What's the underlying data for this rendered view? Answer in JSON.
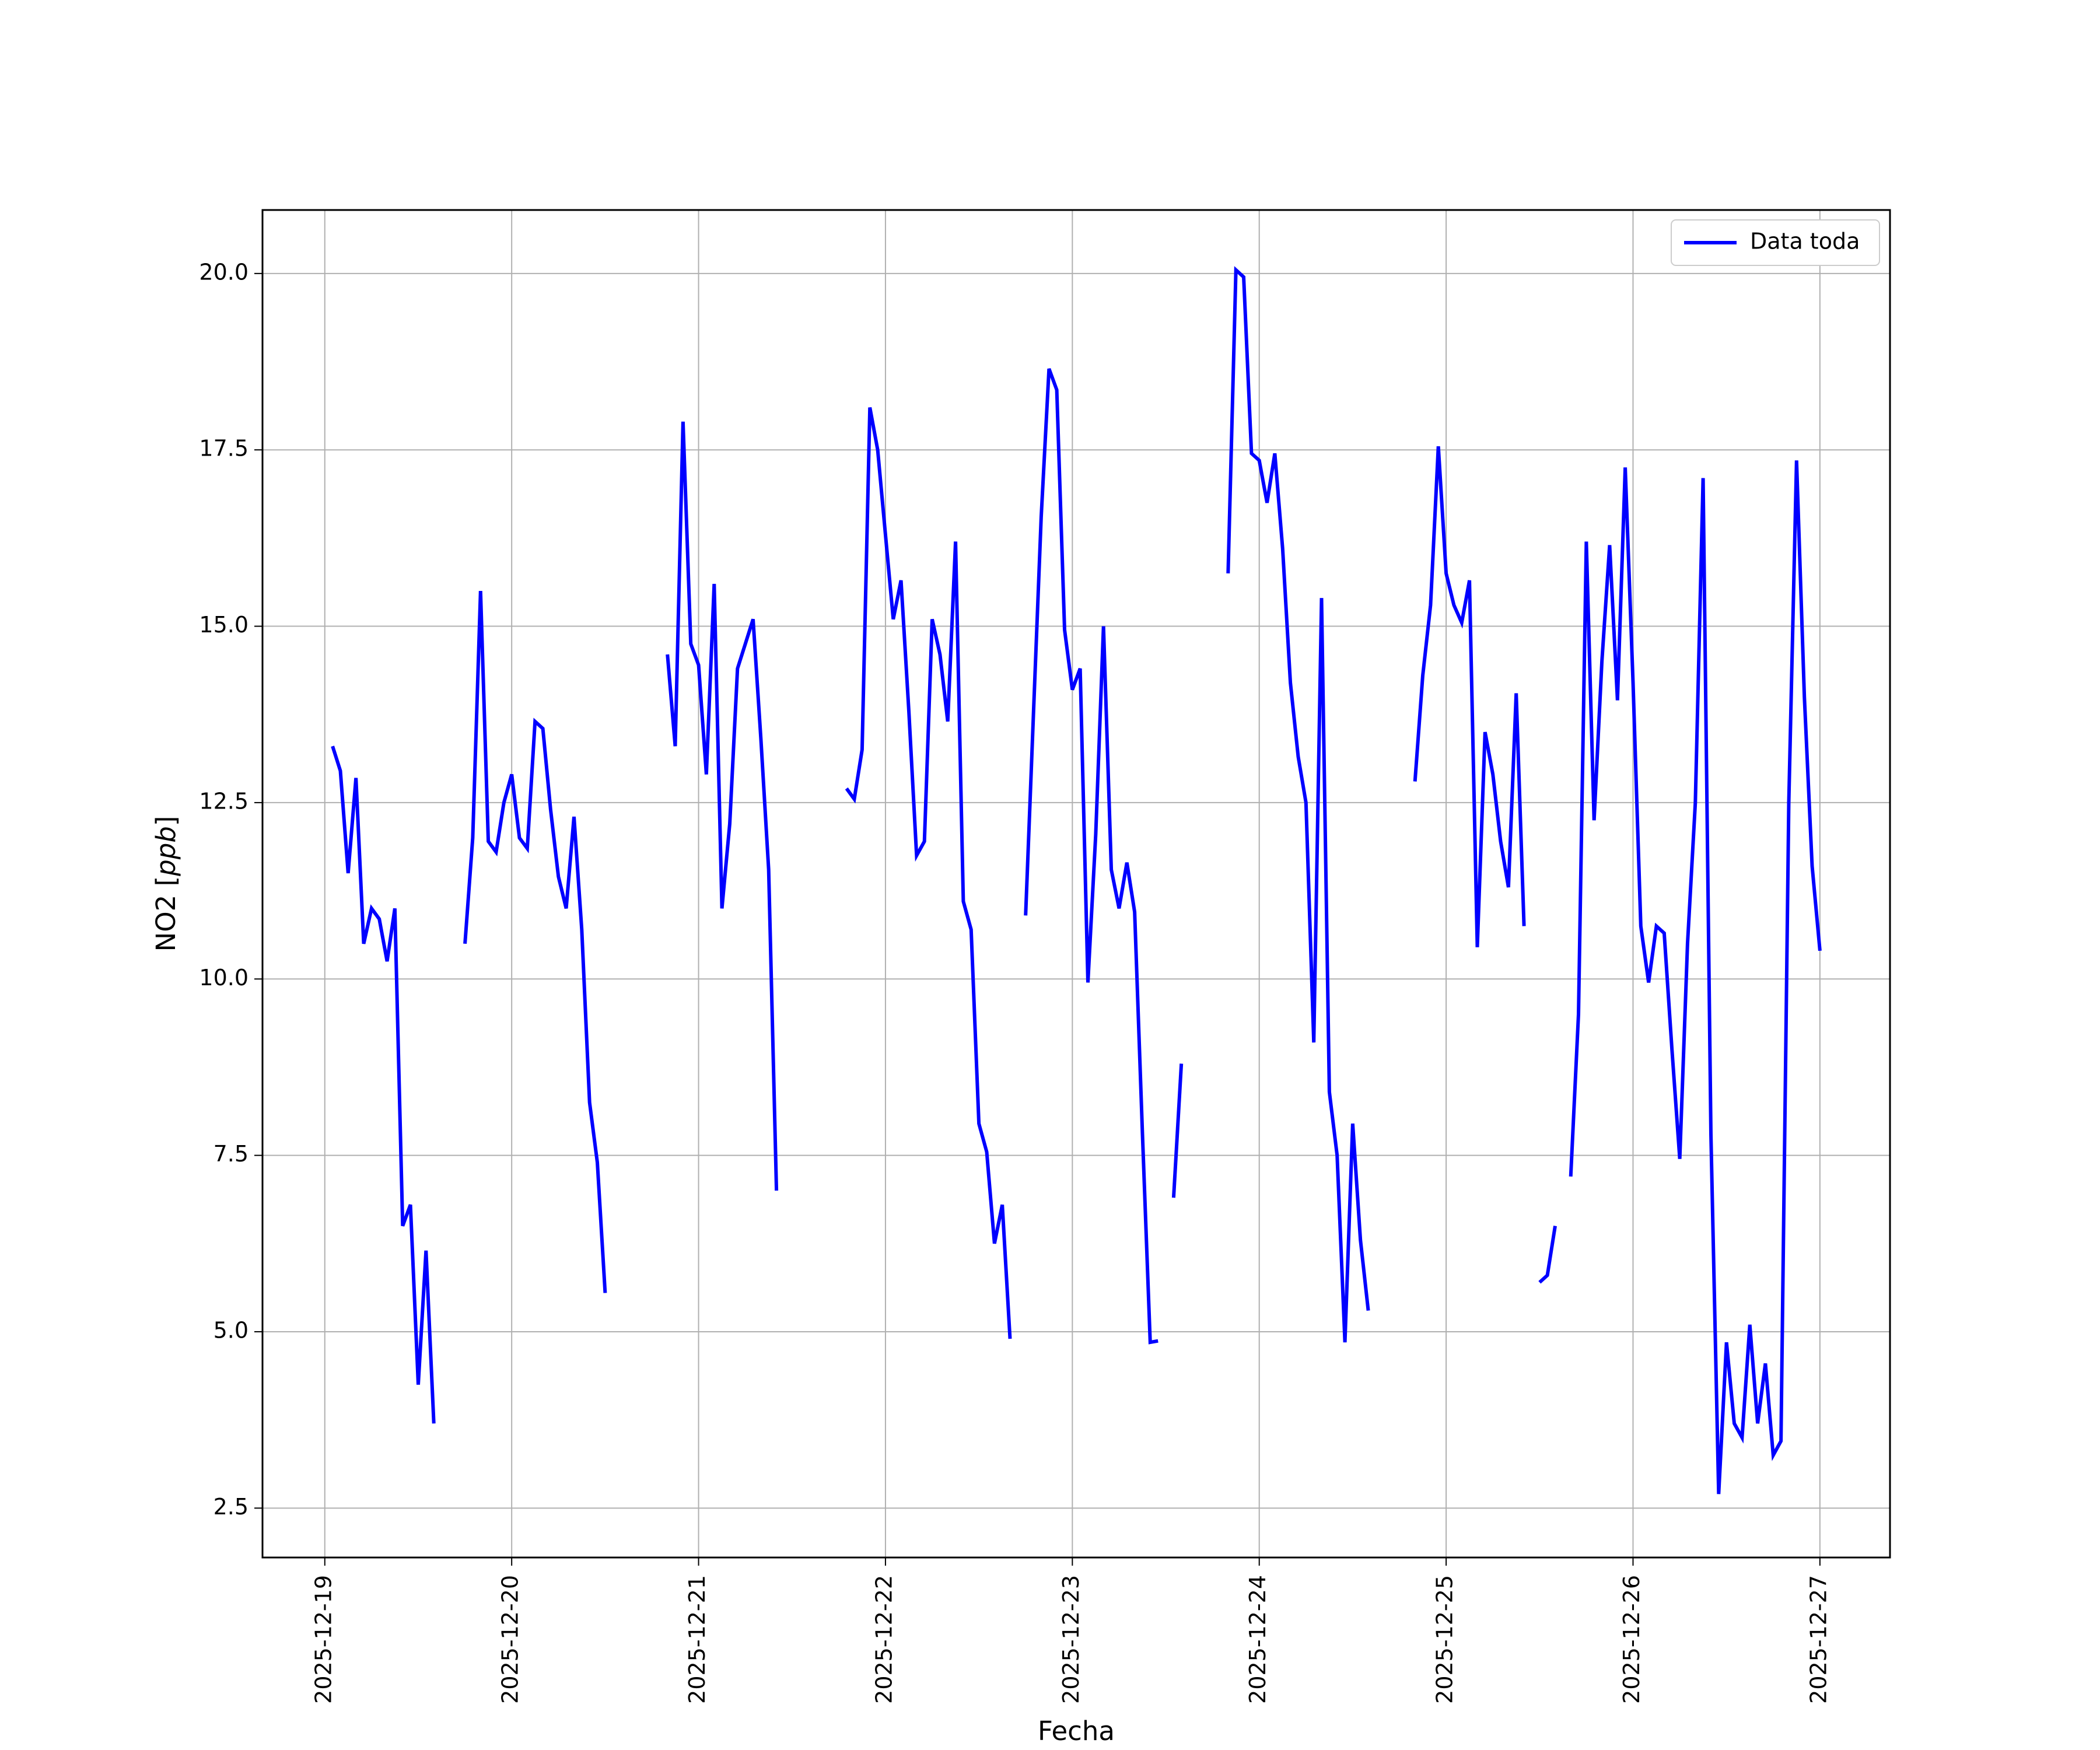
{
  "chart_data": {
    "type": "line",
    "xlabel": "Fecha",
    "ylabel_prefix": "NO2 [",
    "ylabel_unit": "ppb",
    "ylabel_suffix": "]",
    "xlim": [
      "2025-12-18 16:00",
      "2025-12-27 09:00"
    ],
    "ylim": [
      1.8,
      20.9
    ],
    "x_ticks": [
      "2025-12-19",
      "2025-12-20",
      "2025-12-21",
      "2025-12-22",
      "2025-12-23",
      "2025-12-24",
      "2025-12-25",
      "2025-12-26",
      "2025-12-27"
    ],
    "y_ticks": [
      2.5,
      5.0,
      7.5,
      10.0,
      12.5,
      15.0,
      17.5,
      20.0
    ],
    "y_tick_labels": [
      "2.5",
      "5.0",
      "7.5",
      "10.0",
      "12.5",
      "15.0",
      "17.5",
      "20.0"
    ],
    "grid": true,
    "legend_position": "top-right",
    "series": [
      {
        "name": "Data toda",
        "color": "#0000ff",
        "segments": [
          [
            [
              "2025-12-19 01:00",
              13.3
            ],
            [
              "2025-12-19 02:00",
              12.95
            ],
            [
              "2025-12-19 03:00",
              11.5
            ],
            [
              "2025-12-19 04:00",
              12.85
            ],
            [
              "2025-12-19 05:00",
              10.5
            ],
            [
              "2025-12-19 06:00",
              11.0
            ],
            [
              "2025-12-19 07:00",
              10.85
            ],
            [
              "2025-12-19 08:00",
              10.25
            ],
            [
              "2025-12-19 09:00",
              11.0
            ],
            [
              "2025-12-19 10:00",
              6.5
            ],
            [
              "2025-12-19 11:00",
              6.8
            ],
            [
              "2025-12-19 12:00",
              4.25
            ],
            [
              "2025-12-19 13:00",
              6.15
            ],
            [
              "2025-12-19 14:00",
              3.7
            ]
          ],
          [
            [
              "2025-12-19 18:00",
              10.5
            ],
            [
              "2025-12-19 19:00",
              12.0
            ],
            [
              "2025-12-19 20:00",
              15.5
            ],
            [
              "2025-12-19 21:00",
              11.95
            ],
            [
              "2025-12-19 22:00",
              11.8
            ],
            [
              "2025-12-19 23:00",
              12.5
            ],
            [
              "2025-12-20 00:00",
              12.9
            ],
            [
              "2025-12-20 01:00",
              12.0
            ],
            [
              "2025-12-20 02:00",
              11.85
            ],
            [
              "2025-12-20 03:00",
              13.65
            ],
            [
              "2025-12-20 04:00",
              13.55
            ],
            [
              "2025-12-20 05:00",
              12.4
            ],
            [
              "2025-12-20 06:00",
              11.45
            ],
            [
              "2025-12-20 07:00",
              11.0
            ],
            [
              "2025-12-20 08:00",
              12.3
            ],
            [
              "2025-12-20 09:00",
              10.7
            ],
            [
              "2025-12-20 10:00",
              8.25
            ],
            [
              "2025-12-20 11:00",
              7.4
            ],
            [
              "2025-12-20 12:00",
              5.55
            ]
          ],
          [
            [
              "2025-12-20 20:00",
              14.6
            ],
            [
              "2025-12-20 21:00",
              13.3
            ],
            [
              "2025-12-20 22:00",
              17.9
            ],
            [
              "2025-12-20 23:00",
              14.75
            ],
            [
              "2025-12-21 00:00",
              14.45
            ],
            [
              "2025-12-21 01:00",
              12.9
            ],
            [
              "2025-12-21 02:00",
              15.6
            ],
            [
              "2025-12-21 03:00",
              11.0
            ],
            [
              "2025-12-21 04:00",
              12.2
            ],
            [
              "2025-12-21 05:00",
              14.4
            ],
            [
              "2025-12-21 06:00",
              14.75
            ],
            [
              "2025-12-21 07:00",
              15.1
            ],
            [
              "2025-12-21 08:00",
              13.4
            ],
            [
              "2025-12-21 09:00",
              11.55
            ],
            [
              "2025-12-21 10:00",
              7.0
            ]
          ],
          [
            [
              "2025-12-21 19:00",
              12.7
            ],
            [
              "2025-12-21 20:00",
              12.55
            ],
            [
              "2025-12-21 21:00",
              13.25
            ],
            [
              "2025-12-21 22:00",
              18.1
            ],
            [
              "2025-12-21 23:00",
              17.5
            ],
            [
              "2025-12-22 00:00",
              16.3
            ],
            [
              "2025-12-22 01:00",
              15.1
            ],
            [
              "2025-12-22 02:00",
              15.65
            ],
            [
              "2025-12-22 03:00",
              13.8
            ],
            [
              "2025-12-22 04:00",
              11.75
            ],
            [
              "2025-12-22 05:00",
              11.95
            ],
            [
              "2025-12-22 06:00",
              15.1
            ],
            [
              "2025-12-22 07:00",
              14.6
            ],
            [
              "2025-12-22 08:00",
              13.65
            ],
            [
              "2025-12-22 09:00",
              16.2
            ],
            [
              "2025-12-22 10:00",
              11.1
            ],
            [
              "2025-12-22 11:00",
              10.7
            ],
            [
              "2025-12-22 12:00",
              7.95
            ],
            [
              "2025-12-22 13:00",
              7.55
            ],
            [
              "2025-12-22 14:00",
              6.25
            ],
            [
              "2025-12-22 15:00",
              6.8
            ],
            [
              "2025-12-22 16:00",
              4.9
            ]
          ],
          [
            [
              "2025-12-22 18:00",
              10.9
            ],
            [
              "2025-12-22 19:00",
              13.75
            ],
            [
              "2025-12-22 20:00",
              16.55
            ],
            [
              "2025-12-22 21:00",
              18.65
            ],
            [
              "2025-12-22 22:00",
              18.35
            ],
            [
              "2025-12-22 23:00",
              14.95
            ],
            [
              "2025-12-23 00:00",
              14.1
            ],
            [
              "2025-12-23 01:00",
              14.4
            ],
            [
              "2025-12-23 02:00",
              9.95
            ],
            [
              "2025-12-23 03:00",
              12.05
            ],
            [
              "2025-12-23 04:00",
              15.0
            ],
            [
              "2025-12-23 05:00",
              11.55
            ],
            [
              "2025-12-23 06:00",
              11.0
            ],
            [
              "2025-12-23 07:00",
              11.65
            ],
            [
              "2025-12-23 08:00",
              10.95
            ],
            [
              "2025-12-23 09:00",
              7.8
            ],
            [
              "2025-12-23 10:00",
              4.85
            ],
            [
              "2025-12-23 11:00",
              4.87
            ]
          ],
          [
            [
              "2025-12-23 13:00",
              6.9
            ],
            [
              "2025-12-23 14:00",
              8.8
            ]
          ],
          [
            [
              "2025-12-23 20:00",
              15.75
            ],
            [
              "2025-12-23 21:00",
              20.05
            ],
            [
              "2025-12-23 22:00",
              19.95
            ],
            [
              "2025-12-23 23:00",
              17.45
            ],
            [
              "2025-12-24 00:00",
              17.35
            ],
            [
              "2025-12-24 01:00",
              16.75
            ],
            [
              "2025-12-24 02:00",
              17.45
            ],
            [
              "2025-12-24 03:00",
              16.1
            ],
            [
              "2025-12-24 04:00",
              14.2
            ],
            [
              "2025-12-24 05:00",
              13.15
            ],
            [
              "2025-12-24 06:00",
              12.5
            ],
            [
              "2025-12-24 07:00",
              9.1
            ],
            [
              "2025-12-24 08:00",
              15.4
            ],
            [
              "2025-12-24 09:00",
              8.4
            ],
            [
              "2025-12-24 10:00",
              7.5
            ],
            [
              "2025-12-24 11:00",
              4.85
            ],
            [
              "2025-12-24 12:00",
              7.95
            ],
            [
              "2025-12-24 13:00",
              6.3
            ],
            [
              "2025-12-24 14:00",
              5.3
            ]
          ],
          [
            [
              "2025-12-24 20:00",
              12.8
            ],
            [
              "2025-12-24 21:00",
              14.3
            ],
            [
              "2025-12-24 22:00",
              15.3
            ],
            [
              "2025-12-24 23:00",
              17.55
            ],
            [
              "2025-12-25 00:00",
              15.75
            ],
            [
              "2025-12-25 01:00",
              15.3
            ],
            [
              "2025-12-25 02:00",
              15.05
            ],
            [
              "2025-12-25 03:00",
              15.65
            ],
            [
              "2025-12-25 04:00",
              10.45
            ],
            [
              "2025-12-25 05:00",
              13.5
            ],
            [
              "2025-12-25 06:00",
              12.9
            ],
            [
              "2025-12-25 07:00",
              11.95
            ],
            [
              "2025-12-25 08:00",
              11.3
            ],
            [
              "2025-12-25 09:00",
              14.05
            ],
            [
              "2025-12-25 10:00",
              10.75
            ]
          ],
          [
            [
              "2025-12-25 12:00",
              5.7
            ],
            [
              "2025-12-25 13:00",
              5.8
            ],
            [
              "2025-12-25 14:00",
              6.5
            ]
          ],
          [
            [
              "2025-12-25 16:00",
              7.2
            ],
            [
              "2025-12-25 17:00",
              9.5
            ],
            [
              "2025-12-25 18:00",
              16.2
            ],
            [
              "2025-12-25 19:00",
              12.25
            ],
            [
              "2025-12-25 20:00",
              14.5
            ],
            [
              "2025-12-25 21:00",
              16.15
            ],
            [
              "2025-12-25 22:00",
              13.95
            ],
            [
              "2025-12-25 23:00",
              17.25
            ],
            [
              "2025-12-26 00:00",
              14.2
            ],
            [
              "2025-12-26 01:00",
              10.75
            ],
            [
              "2025-12-26 02:00",
              9.95
            ],
            [
              "2025-12-26 03:00",
              10.75
            ],
            [
              "2025-12-26 04:00",
              10.65
            ],
            [
              "2025-12-26 05:00",
              9.0
            ],
            [
              "2025-12-26 06:00",
              7.45
            ],
            [
              "2025-12-26 07:00",
              10.5
            ],
            [
              "2025-12-26 08:00",
              12.5
            ],
            [
              "2025-12-26 09:00",
              17.1
            ],
            [
              "2025-12-26 10:00",
              7.8
            ],
            [
              "2025-12-26 11:00",
              2.7
            ],
            [
              "2025-12-26 12:00",
              4.85
            ],
            [
              "2025-12-26 13:00",
              3.7
            ],
            [
              "2025-12-26 14:00",
              3.5
            ],
            [
              "2025-12-26 15:00",
              5.1
            ],
            [
              "2025-12-26 16:00",
              3.7
            ],
            [
              "2025-12-26 17:00",
              4.55
            ],
            [
              "2025-12-26 18:00",
              3.25
            ],
            [
              "2025-12-26 19:00",
              3.45
            ],
            [
              "2025-12-26 20:00",
              12.5
            ],
            [
              "2025-12-26 21:00",
              17.35
            ],
            [
              "2025-12-26 22:00",
              14.0
            ],
            [
              "2025-12-26 23:00",
              11.6
            ],
            [
              "2025-12-27 00:00",
              10.4
            ]
          ]
        ]
      }
    ]
  }
}
